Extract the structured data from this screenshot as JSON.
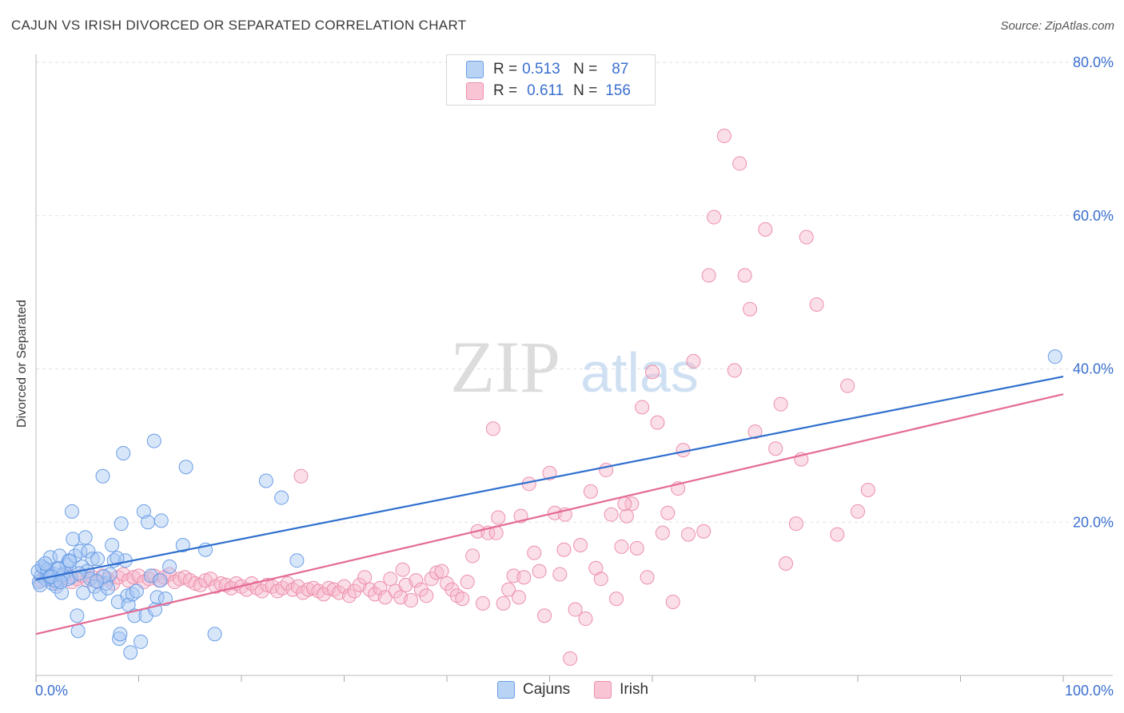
{
  "title": "CAJUN VS IRISH DIVORCED OR SEPARATED CORRELATION CHART",
  "source": "Source: ZipAtlas.com",
  "watermark": {
    "zip": "ZIP",
    "atlas": "atlas"
  },
  "legend_top": [
    {
      "r_label": "R =",
      "r_value": "0.513",
      "n_label": "N =",
      "n_value": "87"
    },
    {
      "r_label": "R =",
      "r_value": "0.611",
      "n_label": "N =",
      "n_value": "156"
    }
  ],
  "legend_bottom": [
    "Cajuns",
    "Irish"
  ],
  "colors": {
    "cajuns_fill": "#a9c8f3",
    "cajuns_stroke": "#6a9ee6",
    "cajuns_line": "#2f6fce",
    "irish_fill": "#f7b9cc",
    "irish_stroke": "#ec8fab",
    "irish_line": "#e46a94",
    "tick_label": "#3a6fcf",
    "grid": "#e2e2e2"
  },
  "chart_data": {
    "type": "scatter",
    "title": "CAJUN VS IRISH DIVORCED OR SEPARATED CORRELATION CHART",
    "xlabel": "",
    "ylabel": "Divorced or Separated",
    "xlim": [
      0,
      100
    ],
    "ylim": [
      0,
      80
    ],
    "x_tick_labels": [
      "0.0%",
      "100.0%"
    ],
    "y_ticks": [
      20,
      40,
      60,
      80
    ],
    "y_tick_labels": [
      "20.0%",
      "40.0%",
      "60.0%",
      "80.0%"
    ],
    "grid": true,
    "legend_position": "bottom",
    "series": [
      {
        "name": "Cajuns",
        "r": 0.513,
        "n": 87,
        "trend": {
          "x": [
            0,
            100
          ],
          "y": [
            12.5,
            39
          ]
        },
        "points": [
          [
            0.3,
            12.2
          ],
          [
            0.5,
            13
          ],
          [
            0.8,
            14
          ],
          [
            1,
            12.5
          ],
          [
            1.2,
            13.5
          ],
          [
            1.4,
            15.4
          ],
          [
            1.6,
            12
          ],
          [
            1.8,
            13.2
          ],
          [
            2,
            11.6
          ],
          [
            2.1,
            14
          ],
          [
            2.3,
            15.6
          ],
          [
            2.5,
            10.8
          ],
          [
            2.8,
            13.4
          ],
          [
            3,
            14.4
          ],
          [
            3.2,
            15
          ],
          [
            3.4,
            12.8
          ],
          [
            3.5,
            21.4
          ],
          [
            3.6,
            17.8
          ],
          [
            3.8,
            15.6
          ],
          [
            4,
            7.8
          ],
          [
            4.1,
            5.8
          ],
          [
            4.3,
            16.2
          ],
          [
            4.5,
            14.2
          ],
          [
            4.6,
            10.8
          ],
          [
            4.8,
            18
          ],
          [
            5,
            13.6
          ],
          [
            5.1,
            16.2
          ],
          [
            5.3,
            12.6
          ],
          [
            5.5,
            15.2
          ],
          [
            5.7,
            11.6
          ],
          [
            6,
            15.2
          ],
          [
            6.2,
            10.6
          ],
          [
            6.5,
            26
          ],
          [
            6.8,
            12
          ],
          [
            7,
            11.4
          ],
          [
            7.2,
            13.2
          ],
          [
            7.4,
            17
          ],
          [
            7.6,
            15
          ],
          [
            8,
            9.6
          ],
          [
            8.1,
            4.8
          ],
          [
            8.2,
            5.4
          ],
          [
            8.3,
            19.8
          ],
          [
            8.5,
            29
          ],
          [
            8.7,
            15
          ],
          [
            8.9,
            10.4
          ],
          [
            9,
            9.2
          ],
          [
            9.2,
            3
          ],
          [
            9.4,
            10.6
          ],
          [
            9.6,
            7.8
          ],
          [
            9.8,
            11
          ],
          [
            10.2,
            4.4
          ],
          [
            10.5,
            21.4
          ],
          [
            10.7,
            7.8
          ],
          [
            10.9,
            20
          ],
          [
            11.2,
            13
          ],
          [
            11.6,
            8.6
          ],
          [
            11.8,
            10.2
          ],
          [
            12.2,
            20.2
          ],
          [
            12.6,
            10
          ],
          [
            13,
            14.2
          ],
          [
            14.3,
            17
          ],
          [
            14.6,
            27.2
          ],
          [
            16.5,
            16.4
          ],
          [
            17.4,
            5.4
          ],
          [
            22.4,
            25.4
          ],
          [
            23.9,
            23.2
          ],
          [
            25.4,
            15
          ],
          [
            0.2,
            13.6
          ],
          [
            0.6,
            14.2
          ],
          [
            1.1,
            13.8
          ],
          [
            1.9,
            12.4
          ],
          [
            2.6,
            13.1
          ],
          [
            3.1,
            12.6
          ],
          [
            1.3,
            12.8
          ],
          [
            2.2,
            13.9
          ],
          [
            11.5,
            30.6
          ],
          [
            12.1,
            12.4
          ],
          [
            6.6,
            12.9
          ],
          [
            7.9,
            15.3
          ],
          [
            0.4,
            11.8
          ],
          [
            0.9,
            14.6
          ],
          [
            1.5,
            12.9
          ],
          [
            2.4,
            12.2
          ],
          [
            3.3,
            14.9
          ],
          [
            4.2,
            13.3
          ],
          [
            5.9,
            12.3
          ],
          [
            99.2,
            41.6
          ]
        ]
      },
      {
        "name": "Irish",
        "r": 0.611,
        "n": 156,
        "trend": {
          "x": [
            0,
            100
          ],
          "y": [
            5.4,
            36.7
          ]
        },
        "points": [
          [
            0.5,
            12.4
          ],
          [
            1,
            13
          ],
          [
            1.5,
            12.6
          ],
          [
            2,
            12
          ],
          [
            2.5,
            12.8
          ],
          [
            3,
            13.2
          ],
          [
            3.5,
            12.2
          ],
          [
            4,
            12.6
          ],
          [
            4.5,
            13
          ],
          [
            5,
            12.4
          ],
          [
            5.5,
            12.8
          ],
          [
            6,
            12.2
          ],
          [
            6.5,
            13
          ],
          [
            7,
            12.6
          ],
          [
            7.5,
            12
          ],
          [
            8,
            12.8
          ],
          [
            8.5,
            13.2
          ],
          [
            9,
            12.4
          ],
          [
            9.5,
            12.8
          ],
          [
            10,
            13
          ],
          [
            10.5,
            12.2
          ],
          [
            11,
            12.6
          ],
          [
            11.5,
            13
          ],
          [
            12,
            12.4
          ],
          [
            12.5,
            12.8
          ],
          [
            13,
            13.2
          ],
          [
            13.5,
            12.2
          ],
          [
            14,
            12.6
          ],
          [
            14.5,
            12.8
          ],
          [
            15,
            12.4
          ],
          [
            15.5,
            12
          ],
          [
            16,
            11.8
          ],
          [
            16.5,
            12.4
          ],
          [
            17,
            12.6
          ],
          [
            17.5,
            11.6
          ],
          [
            18,
            12
          ],
          [
            18.5,
            11.8
          ],
          [
            19,
            11.4
          ],
          [
            19.5,
            12
          ],
          [
            20,
            11.6
          ],
          [
            20.5,
            11.2
          ],
          [
            21,
            12
          ],
          [
            21.5,
            11.4
          ],
          [
            22,
            11
          ],
          [
            22.5,
            11.8
          ],
          [
            23,
            11.6
          ],
          [
            23.5,
            11
          ],
          [
            24,
            11.4
          ],
          [
            24.5,
            12
          ],
          [
            25,
            11.2
          ],
          [
            25.5,
            11.6
          ],
          [
            26,
            10.8
          ],
          [
            26.5,
            11.2
          ],
          [
            27,
            11.4
          ],
          [
            27.5,
            11
          ],
          [
            28,
            10.6
          ],
          [
            28.5,
            11.4
          ],
          [
            29,
            11.2
          ],
          [
            29.5,
            10.8
          ],
          [
            30,
            11.6
          ],
          [
            30.5,
            10.4
          ],
          [
            31,
            11
          ],
          [
            31.5,
            11.8
          ],
          [
            32,
            12.8
          ],
          [
            32.5,
            11.2
          ],
          [
            33,
            10.6
          ],
          [
            33.5,
            11.4
          ],
          [
            34,
            10.2
          ],
          [
            34.5,
            12.6
          ],
          [
            35,
            11
          ],
          [
            35.5,
            10.2
          ],
          [
            36,
            11.8
          ],
          [
            36.5,
            9.8
          ],
          [
            37,
            12.4
          ],
          [
            37.5,
            11.2
          ],
          [
            38,
            10.4
          ],
          [
            38.5,
            12.6
          ],
          [
            39,
            13.4
          ],
          [
            39.5,
            13.6
          ],
          [
            40,
            12
          ],
          [
            40.5,
            11.2
          ],
          [
            41,
            10.4
          ],
          [
            41.5,
            10
          ],
          [
            42,
            12.2
          ],
          [
            42.5,
            15.6
          ],
          [
            43,
            18.8
          ],
          [
            43.5,
            9.4
          ],
          [
            44,
            18.6
          ],
          [
            44.5,
            32.2
          ],
          [
            45,
            20.6
          ],
          [
            45.5,
            9.4
          ],
          [
            46,
            11.2
          ],
          [
            46.5,
            13
          ],
          [
            47,
            10.2
          ],
          [
            47.5,
            12.8
          ],
          [
            48,
            25
          ],
          [
            48.5,
            16
          ],
          [
            49,
            13.6
          ],
          [
            49.5,
            7.8
          ],
          [
            50,
            26.4
          ],
          [
            50.5,
            21.2
          ],
          [
            51,
            13.2
          ],
          [
            51.5,
            21
          ],
          [
            52,
            2.2
          ],
          [
            52.5,
            8.6
          ],
          [
            53,
            17
          ],
          [
            53.5,
            7.4
          ],
          [
            54,
            24
          ],
          [
            54.5,
            14
          ],
          [
            55,
            12.6
          ],
          [
            55.5,
            26.8
          ],
          [
            56,
            21
          ],
          [
            56.5,
            10
          ],
          [
            57,
            16.8
          ],
          [
            57.5,
            20.8
          ],
          [
            58,
            22.4
          ],
          [
            58.5,
            16.6
          ],
          [
            59,
            35
          ],
          [
            59.5,
            12.8
          ],
          [
            60,
            39.6
          ],
          [
            60.5,
            33
          ],
          [
            61,
            18.6
          ],
          [
            61.5,
            21.2
          ],
          [
            62,
            9.6
          ],
          [
            62.5,
            24.4
          ],
          [
            63,
            29.4
          ],
          [
            63.5,
            18.4
          ],
          [
            64,
            41
          ],
          [
            65,
            18.8
          ],
          [
            65.5,
            52.2
          ],
          [
            66,
            59.8
          ],
          [
            67,
            70.4
          ],
          [
            68,
            39.8
          ],
          [
            68.5,
            66.8
          ],
          [
            69,
            52.2
          ],
          [
            69.5,
            47.8
          ],
          [
            70,
            31.8
          ],
          [
            71,
            58.2
          ],
          [
            72,
            29.6
          ],
          [
            72.5,
            35.4
          ],
          [
            73,
            14.6
          ],
          [
            74,
            19.8
          ],
          [
            74.5,
            28.2
          ],
          [
            75,
            57.2
          ],
          [
            76,
            48.4
          ],
          [
            78,
            18.4
          ],
          [
            79,
            37.8
          ],
          [
            80,
            21.4
          ],
          [
            81,
            24.2
          ],
          [
            25.8,
            26
          ],
          [
            35.7,
            13.8
          ],
          [
            47.2,
            20.8
          ],
          [
            44.8,
            18.6
          ],
          [
            51.4,
            16.4
          ],
          [
            57.3,
            22.4
          ]
        ]
      }
    ]
  }
}
